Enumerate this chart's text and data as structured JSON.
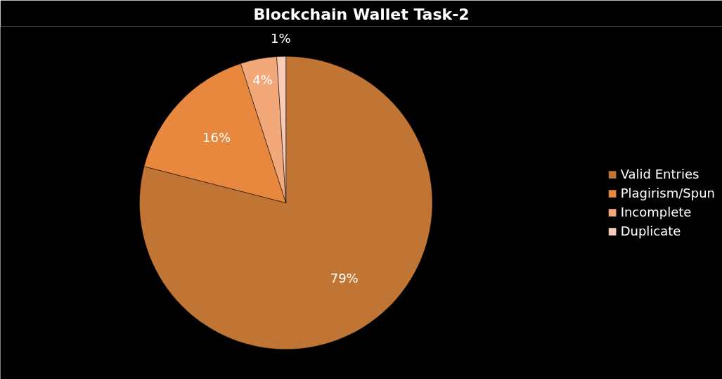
{
  "chart_data": {
    "type": "pie",
    "title": "Blockchain Wallet Task-2",
    "categories": [
      "Valid Entries",
      "Plagirism/Spun",
      "Incomplete",
      "Duplicate"
    ],
    "values": [
      79,
      16,
      4,
      1
    ],
    "colors": [
      "#c07535",
      "#e8883f",
      "#f3a87a",
      "#f8cbb8"
    ],
    "value_labels": [
      "79%",
      "16%",
      "4%",
      "1%"
    ],
    "legend": "right"
  }
}
